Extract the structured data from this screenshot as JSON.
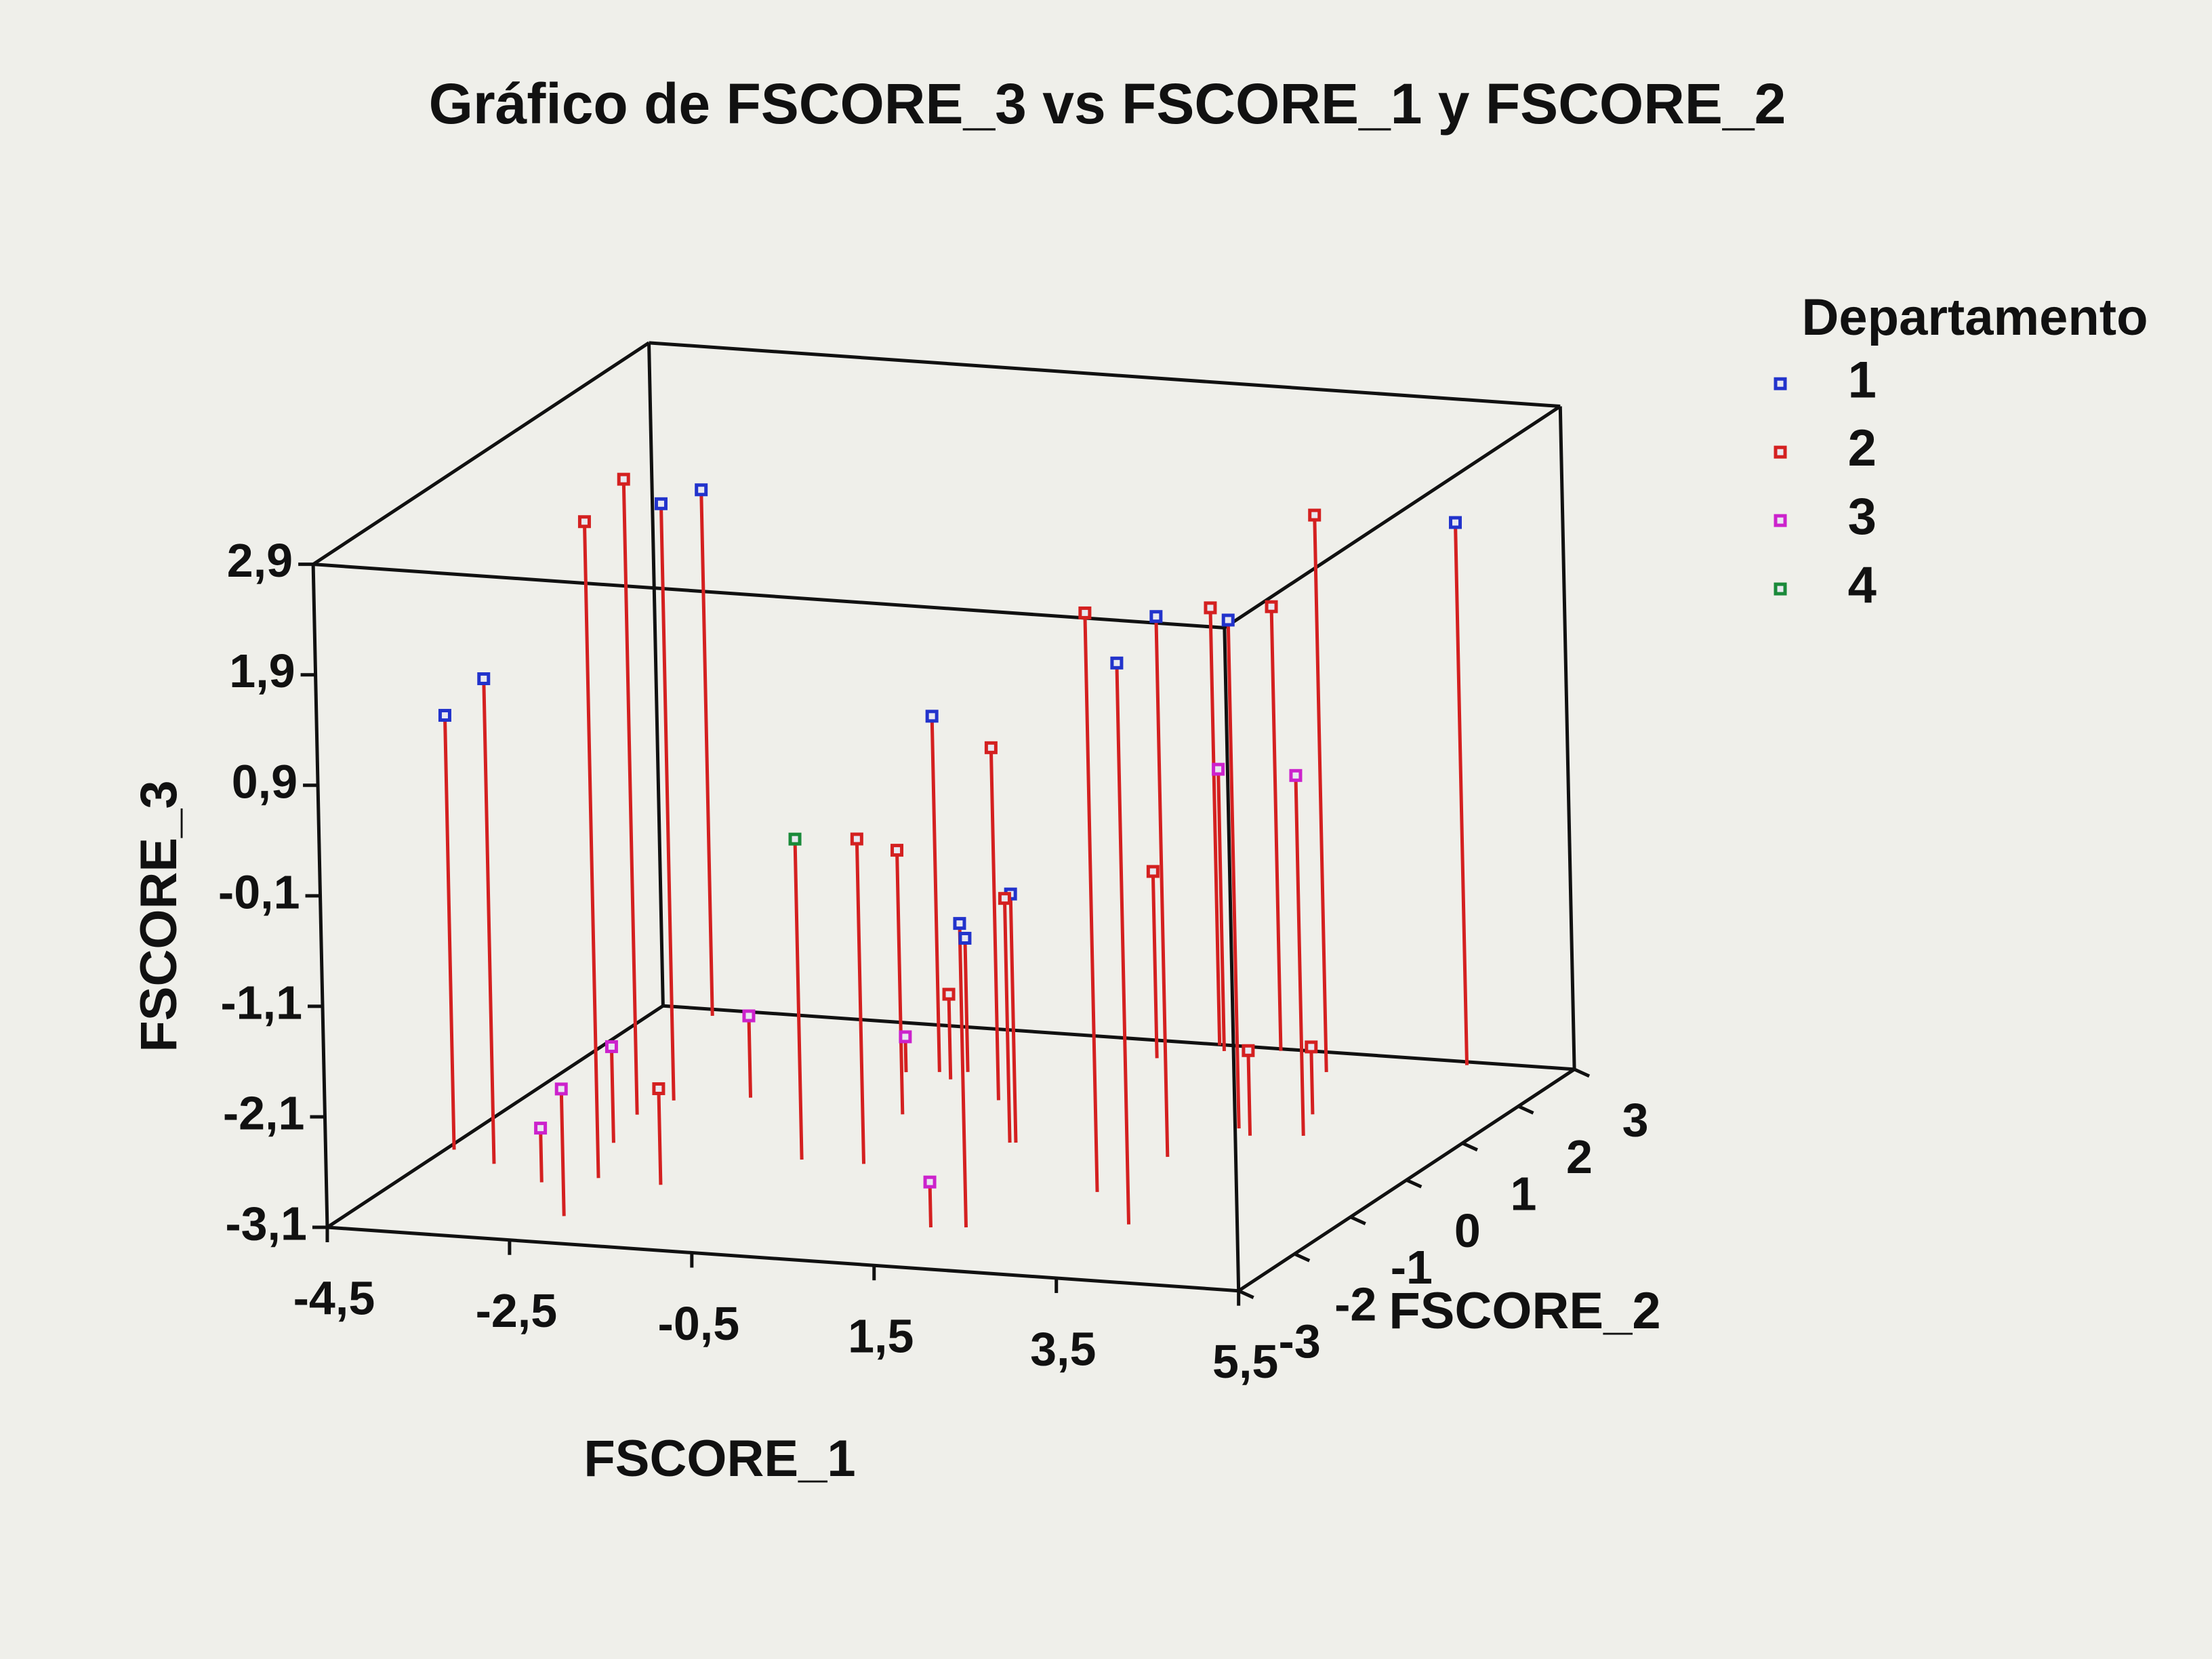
{
  "chart_data": {
    "type": "scatter3d",
    "title": "Gráfico de FSCORE_3 vs FSCORE_1 y FSCORE_2",
    "x_label": "FSCORE_1",
    "y_label": "FSCORE_2",
    "z_label": "FSCORE_3",
    "legend_title": "Departamento",
    "legend_position": "right",
    "drop_lines": true,
    "stem_color": "#d42020",
    "xlim": [
      -4.5,
      5.5
    ],
    "xticks": [
      {
        "value": -4.5,
        "label": "-4,5"
      },
      {
        "value": -2.5,
        "label": "-2,5"
      },
      {
        "value": -0.5,
        "label": "-0,5"
      },
      {
        "value": 1.5,
        "label": "1,5"
      },
      {
        "value": 3.5,
        "label": "3,5"
      },
      {
        "value": 5.5,
        "label": "5,5"
      }
    ],
    "ylim": [
      -3,
      3
    ],
    "yticks": [
      -3,
      -2,
      -1,
      0,
      1,
      2,
      3
    ],
    "zlim": [
      -3.1,
      2.9
    ],
    "zticks": [
      {
        "value": -3.1,
        "label": "-3,1"
      },
      {
        "value": -2.1,
        "label": "-2,1"
      },
      {
        "value": -1.1,
        "label": "-1,1"
      },
      {
        "value": -0.1,
        "label": "-0,1"
      },
      {
        "value": 0.9,
        "label": "0,9"
      },
      {
        "value": 1.9,
        "label": "1,9"
      },
      {
        "value": 2.9,
        "label": "2,9"
      }
    ],
    "series": [
      {
        "name": "1",
        "color": "#2233cc",
        "x": [
          -4.41,
          -3.8,
          -2.97,
          -3.86,
          -0.76,
          1.84,
          -0.48,
          1.06,
          3.41,
          2.78,
          3.06,
          4.37
        ],
        "y": [
          -0.88,
          -1.16,
          0.7,
          2.84,
          1.85,
          -1.91,
          1.9,
          0.25,
          -1.56,
          0.16,
          0.98,
          2.92
        ],
        "z": [
          0.83,
          1.29,
          2.3,
          1.66,
          0.12,
          -0.35,
          -1.89,
          -0.85,
          1.98,
          1.79,
          1.5,
          1.81
        ]
      },
      {
        "name": "2",
        "color": "#d42020",
        "x": [
          -2.55,
          -3.12,
          -1.83,
          -0.13,
          -0.49,
          -0.54,
          0.25,
          1.0,
          2.61,
          1.19,
          1.62,
          3.28,
          2.31,
          3.58,
          3.08
        ],
        "y": [
          -1.33,
          0.29,
          -1.39,
          -0.53,
          0.75,
          1.69,
          1.26,
          0.24,
          -0.82,
          2.56,
          2.98,
          0.82,
          2.95,
          1.45,
          2.51
        ],
        "z": [
          2.84,
          2.65,
          -2.23,
          -0.16,
          -0.71,
          -2.33,
          0.09,
          -0.89,
          2.14,
          -1.41,
          0.86,
          -2.33,
          0.92,
          -2.49,
          1.94
        ]
      },
      {
        "name": "3",
        "color": "#cc22cc",
        "x": [
          -3.05,
          -2.32,
          -2.93,
          -2.25,
          -1.09,
          1.49,
          1.75,
          3.81
        ],
        "y": [
          -1.53,
          -2.32,
          -0.44,
          0.9,
          1.79,
          -1.97,
          2.85,
          0.91
        ],
        "z": [
          -2.61,
          -1.95,
          -2.23,
          -2.36,
          -2.78,
          -2.69,
          -0.55,
          0.16
        ]
      },
      {
        "name": "4",
        "color": "#1a8a3a",
        "x": [
          -0.81
        ],
        "y": [
          -0.53
        ],
        "z": [
          -0.2
        ]
      }
    ]
  }
}
